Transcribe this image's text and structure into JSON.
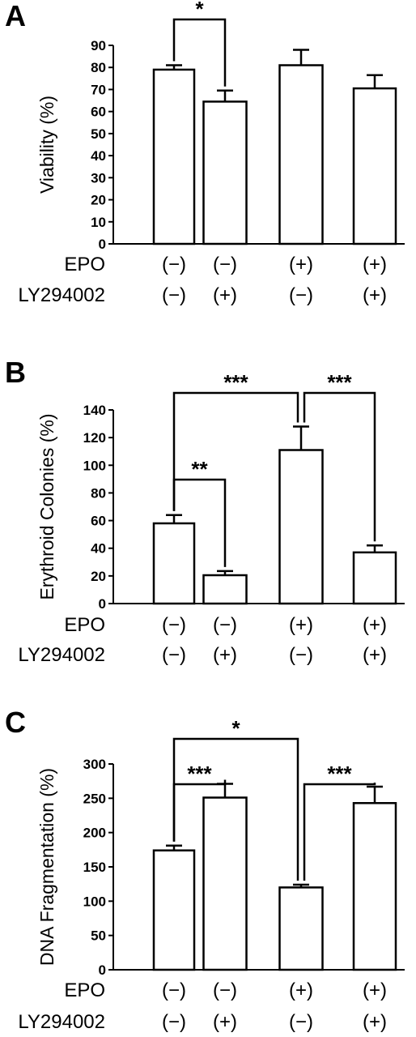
{
  "chart_data": [
    {
      "type": "bar",
      "panel": "A",
      "ylabel": "Viability (%)",
      "ylim": [
        0,
        90
      ],
      "yticks": [
        0,
        10,
        20,
        30,
        40,
        50,
        60,
        70,
        80,
        90
      ],
      "conditions": {
        "rows": [
          "EPO",
          "LY294002"
        ],
        "values": [
          [
            "(−)",
            "(−)",
            "(+)",
            "(+)"
          ],
          [
            "(−)",
            "(+)",
            "(−)",
            "(+)"
          ]
        ]
      },
      "values": [
        79,
        64.5,
        81,
        70.5
      ],
      "errors": [
        2,
        5,
        7,
        6
      ],
      "significance": [
        {
          "from": 0,
          "to": 1,
          "label": "*"
        }
      ]
    },
    {
      "type": "bar",
      "panel": "B",
      "ylabel": "Erythroid  Colonies (%)",
      "ylim": [
        0,
        140
      ],
      "yticks": [
        0,
        20,
        40,
        60,
        80,
        100,
        120,
        140
      ],
      "conditions": {
        "rows": [
          "EPO",
          "LY294002"
        ],
        "values": [
          [
            "(−)",
            "(−)",
            "(+)",
            "(+)"
          ],
          [
            "(−)",
            "(+)",
            "(−)",
            "(+)"
          ]
        ]
      },
      "values": [
        58,
        20.5,
        111,
        37
      ],
      "errors": [
        6,
        3,
        17,
        5
      ],
      "significance": [
        {
          "from": 0,
          "to": 1,
          "label": "**"
        },
        {
          "from": 0,
          "to": 2,
          "label": "***"
        },
        {
          "from": 2,
          "to": 3,
          "label": "***"
        }
      ]
    },
    {
      "type": "bar",
      "panel": "C",
      "ylabel": "DNA Fragmentation (%)",
      "ylim": [
        0,
        300
      ],
      "yticks": [
        0,
        50,
        100,
        150,
        200,
        250,
        300
      ],
      "conditions": {
        "rows": [
          "EPO",
          "LY294002"
        ],
        "values": [
          [
            "(−)",
            "(−)",
            "(+)",
            "(+)"
          ],
          [
            "(−)",
            "(+)",
            "(−)",
            "(+)"
          ]
        ]
      },
      "values": [
        174,
        251,
        120,
        243
      ],
      "errors": [
        7,
        20,
        4,
        24
      ],
      "significance": [
        {
          "from": 0,
          "to": 1,
          "label": "***"
        },
        {
          "from": 0,
          "to": 2,
          "label": "*"
        },
        {
          "from": 2,
          "to": 3,
          "label": "***"
        }
      ]
    }
  ]
}
